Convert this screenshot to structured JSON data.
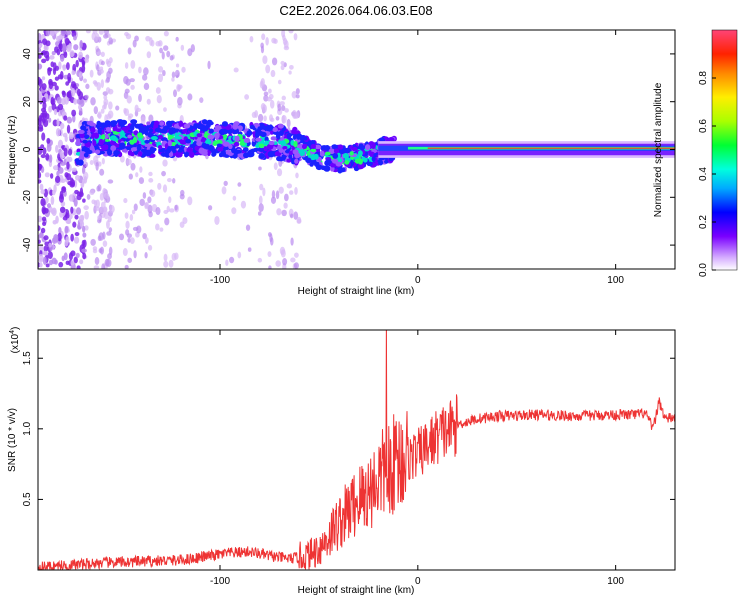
{
  "title": "C2E2.2026.064.06.03.E08",
  "colors": {
    "snr_line": "#ee3333",
    "axis": "#000000"
  },
  "chart_data": [
    {
      "type": "heatmap",
      "xlabel": "Height of straight line (km)",
      "ylabel": "Frequency (Hz)",
      "xlim": [
        -192,
        130
      ],
      "ylim": [
        -50,
        50
      ],
      "x_ticks": [
        -100,
        0,
        100
      ],
      "x_tick_labels": [
        "-100",
        "0",
        "100"
      ],
      "y_ticks": [
        -40,
        -20,
        0,
        20,
        40
      ],
      "y_tick_labels": [
        "-40",
        "-20",
        "0",
        "20",
        "40"
      ],
      "colorbar": {
        "label": "Normalized spectral amplitude",
        "range": [
          0.0,
          1.0
        ],
        "ticks": [
          0.0,
          0.2,
          0.4,
          0.6,
          0.8
        ],
        "tick_labels": [
          "0.0",
          "0.2",
          "0.4",
          "0.6",
          "0.8"
        ],
        "colormap": "rainbow"
      },
      "ridge": [
        {
          "x": -170,
          "f": 4
        },
        {
          "x": -150,
          "f": 5
        },
        {
          "x": -130,
          "f": 4
        },
        {
          "x": -110,
          "f": 5
        },
        {
          "x": -90,
          "f": 4
        },
        {
          "x": -70,
          "f": 3
        },
        {
          "x": -60,
          "f": 1
        },
        {
          "x": -50,
          "f": -3
        },
        {
          "x": -40,
          "f": -4
        },
        {
          "x": -30,
          "f": -3
        },
        {
          "x": -20,
          "f": -1
        },
        {
          "x": -10,
          "f": 1
        },
        {
          "x": 0,
          "f": 1
        },
        {
          "x": 20,
          "f": 0.5
        },
        {
          "x": 60,
          "f": 0.5
        },
        {
          "x": 100,
          "f": 0.5
        },
        {
          "x": 118,
          "f": 1
        },
        {
          "x": 130,
          "f": 0.5
        }
      ]
    },
    {
      "type": "line",
      "xlabel": "Height of straight line (km)",
      "ylabel": "SNR (10 * v/v)",
      "y_multiplier": "(x10",
      "y_multiplier_exp": "4",
      "y_multiplier_close": ")",
      "xlim": [
        -192,
        130
      ],
      "ylim": [
        0,
        1.7
      ],
      "x_ticks": [
        -100,
        0,
        100
      ],
      "x_tick_labels": [
        "-100",
        "0",
        "100"
      ],
      "y_ticks": [
        0.5,
        1.0,
        1.5
      ],
      "y_tick_labels": [
        "0.5",
        "1.0",
        "1.5"
      ],
      "series": [
        {
          "x": [
            -192,
            -180,
            -160,
            -140,
            -120,
            -105,
            -95,
            -85,
            -75,
            -65,
            -55,
            -48,
            -42,
            -36,
            -30,
            -25,
            -20,
            -16,
            -13,
            -10,
            -5,
            0,
            5,
            10,
            20,
            30,
            40,
            60,
            80,
            100,
            110,
            115,
            119,
            122,
            125,
            130
          ],
          "y": [
            0.02,
            0.03,
            0.05,
            0.06,
            0.07,
            0.1,
            0.12,
            0.13,
            0.1,
            0.08,
            0.1,
            0.18,
            0.3,
            0.4,
            0.5,
            0.55,
            0.65,
            0.7,
            0.75,
            0.78,
            0.8,
            0.82,
            0.88,
            0.95,
            1.03,
            1.07,
            1.09,
            1.1,
            1.09,
            1.1,
            1.1,
            1.11,
            1.0,
            1.2,
            1.07,
            1.08
          ]
        }
      ]
    }
  ]
}
